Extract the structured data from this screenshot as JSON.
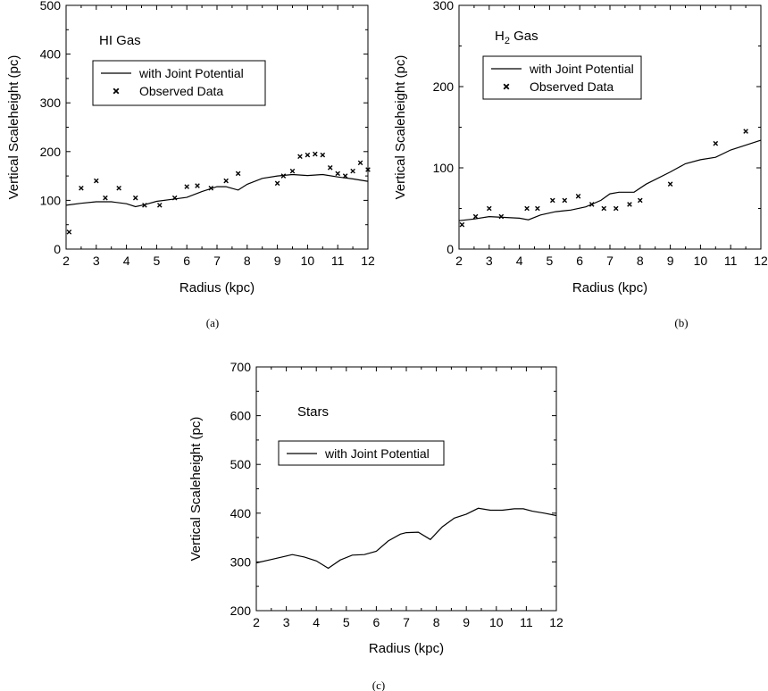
{
  "chart_data": [
    {
      "type": "line",
      "title": "HI Gas",
      "caption": "(a)",
      "xlabel": "Radius  (kpc)",
      "ylabel": "Vertical Scaleheight  (pc)",
      "xlim": [
        2,
        12
      ],
      "ylim": [
        0,
        500
      ],
      "xticks": [
        2,
        3,
        4,
        5,
        6,
        7,
        8,
        9,
        10,
        11,
        12
      ],
      "yticks": [
        0,
        100,
        200,
        300,
        400,
        500
      ],
      "legend_position": "upper-left",
      "series": [
        {
          "name": "with Joint Potential",
          "kind": "line",
          "x": [
            2,
            2.5,
            3,
            3.5,
            4,
            4.3,
            4.6,
            5,
            5.5,
            6,
            6.5,
            7,
            7.3,
            7.7,
            8,
            8.5,
            9,
            9.5,
            10,
            10.5,
            11,
            11.5,
            12
          ],
          "y": [
            90,
            94,
            97,
            97,
            93,
            87,
            91,
            98,
            102,
            106,
            118,
            128,
            128,
            121,
            133,
            145,
            150,
            153,
            151,
            153,
            148,
            144,
            139
          ]
        },
        {
          "name": "Observed Data",
          "kind": "scatter",
          "x": [
            2.1,
            2.5,
            3.0,
            3.3,
            3.75,
            4.3,
            4.6,
            5.1,
            5.6,
            6.0,
            6.35,
            6.8,
            7.3,
            7.7,
            9.0,
            9.2,
            9.5,
            9.75,
            10.0,
            10.25,
            10.5,
            10.75,
            11.0,
            11.25,
            11.5,
            11.75,
            12.0
          ],
          "y": [
            35,
            125,
            140,
            105,
            125,
            105,
            90,
            90,
            105,
            128,
            130,
            125,
            140,
            155,
            135,
            150,
            160,
            190,
            193,
            195,
            193,
            167,
            155,
            150,
            160,
            177,
            163
          ]
        }
      ]
    },
    {
      "type": "line",
      "title": "H",
      "title_subscript": "2",
      "title_suffix": " Gas",
      "caption": "(b)",
      "xlabel": "Radius  (kpc)",
      "ylabel": "Vertical Scaleheight  (pc)",
      "xlim": [
        2,
        12
      ],
      "ylim": [
        0,
        300
      ],
      "xticks": [
        2,
        3,
        4,
        5,
        6,
        7,
        8,
        9,
        10,
        11,
        12
      ],
      "yticks": [
        0,
        100,
        200,
        300
      ],
      "legend_position": "upper-left",
      "series": [
        {
          "name": "with Joint Potential",
          "kind": "line",
          "x": [
            2,
            2.5,
            3,
            3.5,
            4,
            4.3,
            4.7,
            5.2,
            5.7,
            6.2,
            6.7,
            7.0,
            7.3,
            7.8,
            8.2,
            9.0,
            9.5,
            10.0,
            10.5,
            11.0,
            12.0
          ],
          "y": [
            35,
            37,
            40,
            39,
            38,
            36,
            42,
            46,
            48,
            52,
            60,
            68,
            70,
            70,
            80,
            95,
            105,
            110,
            113,
            122,
            134
          ]
        },
        {
          "name": "Observed Data",
          "kind": "scatter",
          "x": [
            2.1,
            2.55,
            3.0,
            3.4,
            4.25,
            4.6,
            5.1,
            5.5,
            5.95,
            6.4,
            6.8,
            7.2,
            7.65,
            8.0,
            9.0,
            10.5,
            11.5
          ],
          "y": [
            30,
            40,
            50,
            40,
            50,
            50,
            60,
            60,
            65,
            55,
            50,
            50,
            55,
            60,
            80,
            130,
            145
          ]
        }
      ]
    },
    {
      "type": "line",
      "title": "Stars",
      "caption": "(c)",
      "xlabel": "Radius  (kpc)",
      "ylabel": "Vertical Scaleheight  (pc)",
      "xlim": [
        2,
        12
      ],
      "ylim": [
        200,
        700
      ],
      "xticks": [
        2,
        3,
        4,
        5,
        6,
        7,
        8,
        9,
        10,
        11,
        12
      ],
      "yticks": [
        200,
        300,
        400,
        500,
        600,
        700
      ],
      "legend_position": "upper-left",
      "series": [
        {
          "name": "with Joint Potential",
          "kind": "line",
          "x": [
            2,
            2.5,
            3.0,
            3.2,
            3.6,
            4.0,
            4.4,
            4.8,
            5.2,
            5.6,
            6.0,
            6.4,
            6.8,
            7.0,
            7.4,
            7.8,
            8.2,
            8.6,
            9.0,
            9.4,
            9.8,
            10.2,
            10.6,
            10.9,
            11.2,
            11.6,
            12.0
          ],
          "y": [
            298,
            305,
            312,
            315,
            310,
            302,
            287,
            304,
            314,
            315,
            322,
            343,
            357,
            360,
            361,
            346,
            372,
            390,
            398,
            410,
            406,
            406,
            409,
            409,
            404,
            400,
            395
          ]
        }
      ]
    }
  ]
}
